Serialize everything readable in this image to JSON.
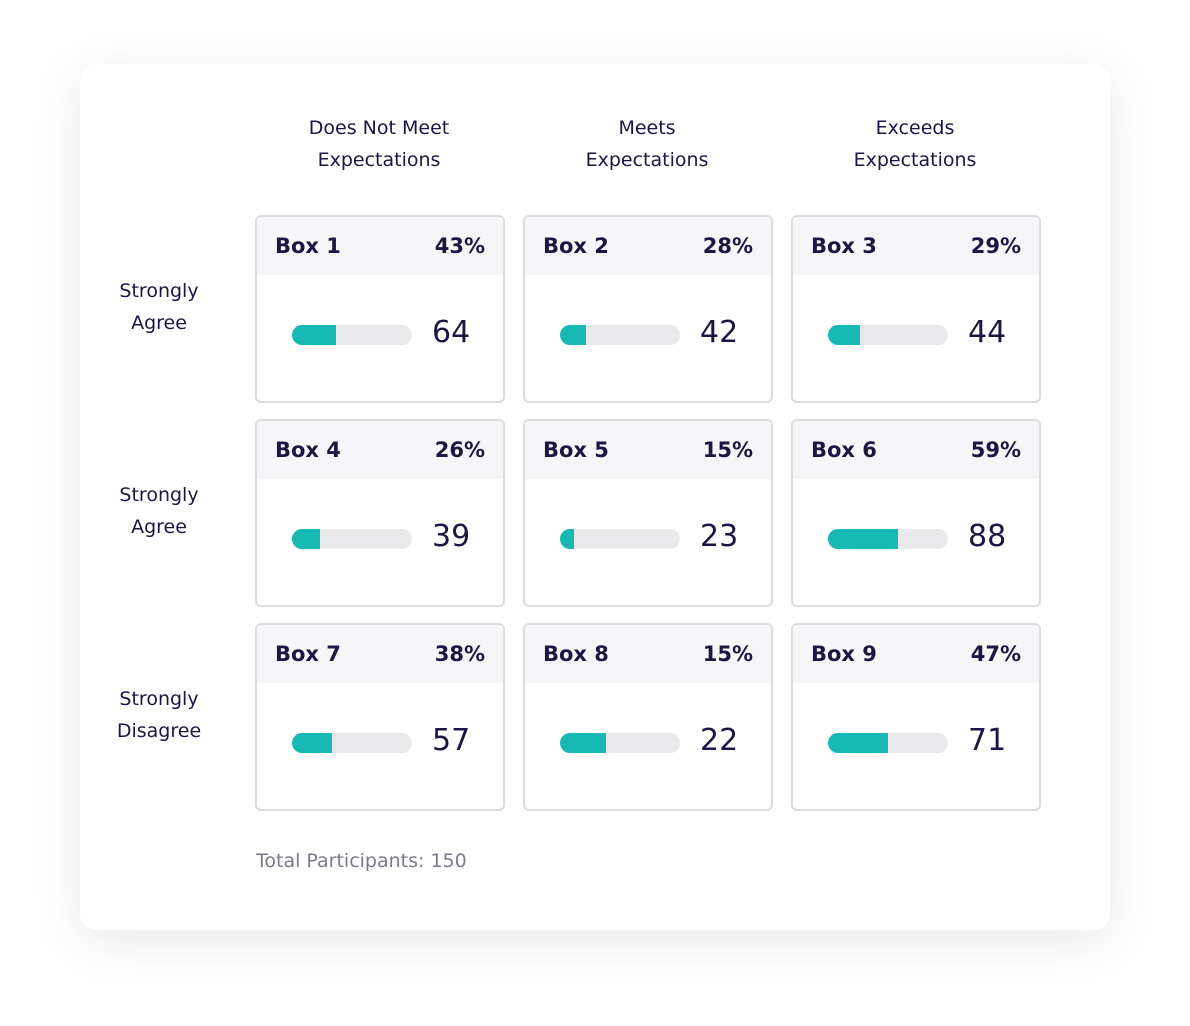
{
  "columns": [
    "Does Not Meet\nExpectations",
    "Meets\nExpectations",
    "Exceeds\nExpectations"
  ],
  "rows": [
    "Strongly\nAgree",
    "Strongly\nAgree",
    "Strongly\nDisagree"
  ],
  "boxes": [
    {
      "label": "Box 1",
      "percent": "43%",
      "count": "64",
      "fill": 0.37
    },
    {
      "label": "Box 2",
      "percent": "28%",
      "count": "42",
      "fill": 0.22
    },
    {
      "label": "Box 3",
      "percent": "29%",
      "count": "44",
      "fill": 0.27
    },
    {
      "label": "Box 4",
      "percent": "26%",
      "count": "39",
      "fill": 0.23
    },
    {
      "label": "Box 5",
      "percent": "15%",
      "count": "23",
      "fill": 0.12
    },
    {
      "label": "Box 6",
      "percent": "59%",
      "count": "88",
      "fill": 0.58
    },
    {
      "label": "Box 7",
      "percent": "38%",
      "count": "57",
      "fill": 0.33
    },
    {
      "label": "Box 8",
      "percent": "15%",
      "count": "22",
      "fill": 0.38
    },
    {
      "label": "Box 9",
      "percent": "47%",
      "count": "71",
      "fill": 0.5
    }
  ],
  "total": "Total Participants: 150",
  "colors": {
    "accent": "#17b9b5",
    "text": "#1b1742",
    "track": "#e9e9ec"
  }
}
